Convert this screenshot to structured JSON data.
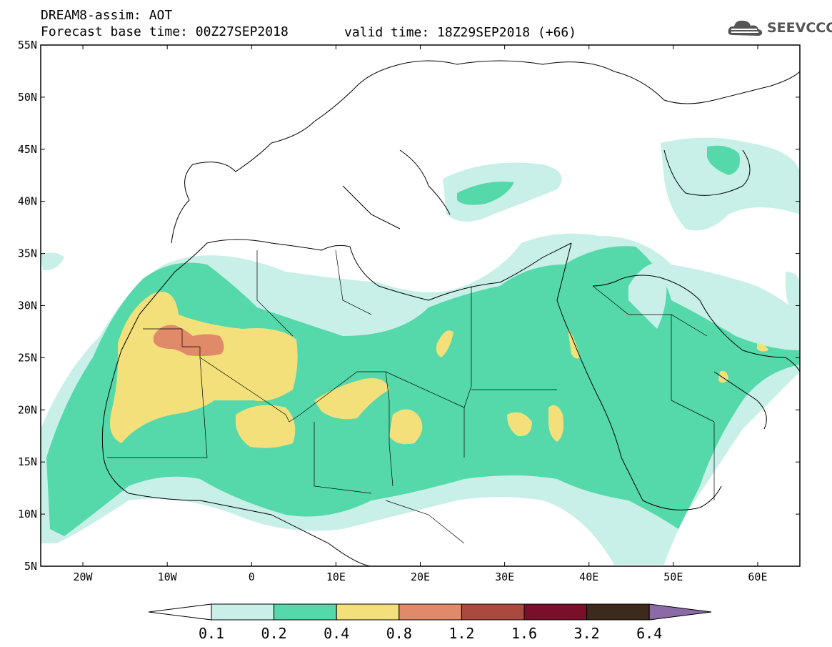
{
  "header": {
    "title": "DREAM8-assim: AOT",
    "base_time": "Forecast base time: 00Z27SEP2018",
    "valid_time": "valid time: 18Z29SEP2018 (+66)",
    "logo_text": "SEEVCCC"
  },
  "map": {
    "lon_range": [
      -25,
      65
    ],
    "lat_range": [
      5,
      55
    ],
    "lat_labels": [
      "55N",
      "50N",
      "45N",
      "40N",
      "35N",
      "30N",
      "25N",
      "20N",
      "15N",
      "10N",
      "5N"
    ],
    "lon_labels": [
      "20W",
      "10W",
      "0",
      "10E",
      "20E",
      "30E",
      "40E",
      "50E",
      "60E"
    ],
    "variable": "AOT"
  },
  "legend": {
    "levels": [
      "0.1",
      "0.2",
      "0.4",
      "0.8",
      "1.2",
      "1.6",
      "3.2",
      "6.4"
    ],
    "colors": [
      "#ffffff",
      "#c8f0e8",
      "#55d9aa",
      "#f3e07a",
      "#e08a6a",
      "#aa4a3e",
      "#7a0f2a",
      "#3c2a1a",
      "#8c6aa8"
    ]
  }
}
